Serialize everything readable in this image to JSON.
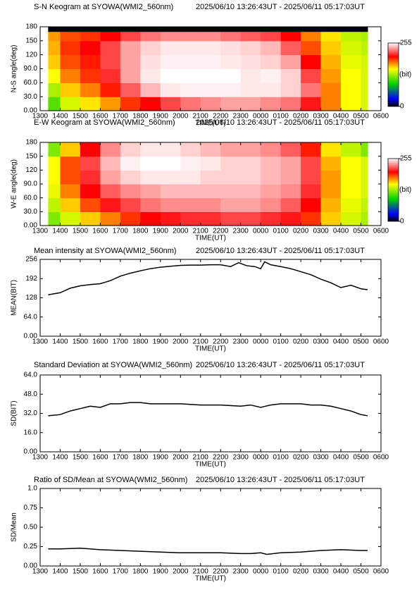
{
  "chart_data": [
    {
      "type": "heatmap",
      "title": "S-N Keogram at SYOWA(WMI2_560nm)",
      "time_range": "2025/06/10 13:26:43UT - 2025/06/11 05:17:03UT",
      "xlabel": "TIME(UT)",
      "ylabel": "N-S angle(deg)",
      "xlim": [
        13,
        30
      ],
      "xticks": [
        {
          "value": 13,
          "label": "1300"
        },
        {
          "value": 14,
          "label": "1400"
        },
        {
          "value": 15,
          "label": "1500"
        },
        {
          "value": 16,
          "label": "1600"
        },
        {
          "value": 17,
          "label": "1700"
        },
        {
          "value": 18,
          "label": "1800"
        },
        {
          "value": 19,
          "label": "1900"
        },
        {
          "value": 20,
          "label": "2000"
        },
        {
          "value": 21,
          "label": "2100"
        },
        {
          "value": 22,
          "label": "2200"
        },
        {
          "value": 23,
          "label": "2300"
        },
        {
          "value": 24,
          "label": "0000"
        },
        {
          "value": 25,
          "label": "0100"
        },
        {
          "value": 26,
          "label": "0200"
        },
        {
          "value": 27,
          "label": "0300"
        },
        {
          "value": 28,
          "label": "0400"
        },
        {
          "value": 29,
          "label": "0500"
        },
        {
          "value": 30,
          "label": "0600"
        }
      ],
      "ylim": [
        0,
        180
      ],
      "yticks": [
        {
          "value": 0,
          "label": "0.00"
        },
        {
          "value": 30,
          "label": "30.0"
        },
        {
          "value": 60,
          "label": "60.0"
        },
        {
          "value": 90,
          "label": "90.0"
        },
        120,
        150,
        180
      ],
      "zlim": [
        0,
        255
      ],
      "zticks": [
        0,
        255
      ],
      "zlabel": "(bit)",
      "x_edges": [
        13.4,
        14,
        15,
        16,
        17,
        18,
        19,
        20,
        21,
        22,
        23,
        24,
        25,
        26,
        27,
        28,
        29,
        29.33
      ],
      "y_edges": [
        0,
        30,
        60,
        90,
        120,
        150,
        170,
        180
      ],
      "z": [
        [
          110,
          140,
          155,
          170,
          190,
          200,
          215,
          225,
          230,
          235,
          235,
          230,
          225,
          205,
          175,
          150,
          140
        ],
        [
          130,
          160,
          175,
          195,
          220,
          240,
          250,
          252,
          252,
          252,
          250,
          250,
          245,
          225,
          175,
          150,
          140
        ],
        [
          150,
          175,
          190,
          210,
          235,
          250,
          255,
          255,
          255,
          255,
          250,
          252,
          245,
          215,
          170,
          150,
          140
        ],
        [
          160,
          185,
          195,
          215,
          235,
          248,
          252,
          252,
          252,
          250,
          248,
          245,
          235,
          200,
          165,
          145,
          140
        ],
        [
          165,
          190,
          200,
          215,
          235,
          245,
          250,
          250,
          250,
          248,
          245,
          240,
          220,
          185,
          160,
          140,
          135
        ],
        [
          170,
          185,
          190,
          200,
          215,
          225,
          230,
          230,
          230,
          225,
          220,
          215,
          200,
          175,
          155,
          135,
          130
        ],
        [
          null,
          null,
          null,
          null,
          null,
          null,
          null,
          null,
          null,
          null,
          null,
          null,
          null,
          null,
          null,
          null,
          null
        ]
      ]
    },
    {
      "type": "heatmap",
      "title": "E-W Keogram at SYOWA(WMI2_560nm)",
      "time_range": "2025/06/10 13:26:43UT - 2025/06/11 05:17:03UT",
      "xlabel": "TIME(UT)",
      "ylabel": "W-E angle(deg)",
      "xlim": [
        13,
        30
      ],
      "xticks": [
        {
          "value": 13,
          "label": "1300"
        },
        {
          "value": 14,
          "label": "1400"
        },
        {
          "value": 15,
          "label": "1500"
        },
        {
          "value": 16,
          "label": "1600"
        },
        {
          "value": 17,
          "label": "1700"
        },
        {
          "value": 18,
          "label": "1800"
        },
        {
          "value": 19,
          "label": "1900"
        },
        {
          "value": 20,
          "label": "2000"
        },
        {
          "value": 21,
          "label": "2100"
        },
        {
          "value": 22,
          "label": "2200"
        },
        {
          "value": 23,
          "label": "2300"
        },
        {
          "value": 24,
          "label": "0000"
        },
        {
          "value": 25,
          "label": "0100"
        },
        {
          "value": 26,
          "label": "0200"
        },
        {
          "value": 27,
          "label": "0300"
        },
        {
          "value": 28,
          "label": "0400"
        },
        {
          "value": 29,
          "label": "0500"
        },
        {
          "value": 30,
          "label": "0600"
        }
      ],
      "ylim": [
        0,
        180
      ],
      "yticks": [
        {
          "value": 0,
          "label": "0.00"
        },
        {
          "value": 30,
          "label": "30.0"
        },
        {
          "value": 60,
          "label": "60.0"
        },
        {
          "value": 90,
          "label": "90.0"
        },
        120,
        150,
        180
      ],
      "zlim": [
        0,
        255
      ],
      "zticks": [
        0,
        255
      ],
      "zlabel": "(bit)",
      "x_edges": [
        13.4,
        14,
        15,
        16,
        17,
        18,
        19,
        20,
        21,
        22,
        23,
        24,
        25,
        26,
        27,
        28,
        29,
        29.33
      ],
      "y_edges": [
        0,
        30,
        60,
        90,
        120,
        150,
        180
      ],
      "z": [
        [
          120,
          140,
          160,
          175,
          190,
          200,
          205,
          210,
          210,
          215,
          215,
          210,
          205,
          190,
          160,
          140,
          130
        ],
        [
          135,
          160,
          185,
          205,
          215,
          225,
          230,
          230,
          230,
          235,
          235,
          230,
          220,
          200,
          165,
          145,
          135
        ],
        [
          145,
          175,
          200,
          220,
          230,
          235,
          240,
          240,
          240,
          240,
          240,
          235,
          230,
          210,
          170,
          150,
          140
        ],
        [
          150,
          185,
          210,
          235,
          245,
          250,
          250,
          250,
          245,
          245,
          245,
          240,
          235,
          215,
          170,
          150,
          140
        ],
        [
          150,
          185,
          215,
          240,
          252,
          255,
          255,
          252,
          250,
          245,
          245,
          240,
          235,
          215,
          165,
          150,
          140
        ],
        [
          120,
          160,
          200,
          230,
          245,
          250,
          250,
          245,
          240,
          235,
          235,
          230,
          220,
          195,
          155,
          135,
          120
        ]
      ]
    },
    {
      "type": "line",
      "title": "Mean intensity at SYOWA(WMI2_560nm)",
      "time_range": "2025/06/10 13:26:43UT - 2025/06/11 05:17:03UT",
      "xlabel": "TIME(UT)",
      "ylabel": "MEAN(BIT)",
      "color": "#000000",
      "xlim": [
        13,
        30
      ],
      "xticks": [
        {
          "value": 13,
          "label": "1300"
        },
        {
          "value": 14,
          "label": "1400"
        },
        {
          "value": 15,
          "label": "1500"
        },
        {
          "value": 16,
          "label": "1600"
        },
        {
          "value": 17,
          "label": "1700"
        },
        {
          "value": 18,
          "label": "1800"
        },
        {
          "value": 19,
          "label": "1900"
        },
        {
          "value": 20,
          "label": "2000"
        },
        {
          "value": 21,
          "label": "2100"
        },
        {
          "value": 22,
          "label": "2200"
        },
        {
          "value": 23,
          "label": "2300"
        },
        {
          "value": 24,
          "label": "0000"
        },
        {
          "value": 25,
          "label": "0100"
        },
        {
          "value": 26,
          "label": "0200"
        },
        {
          "value": 27,
          "label": "0300"
        },
        {
          "value": 28,
          "label": "0400"
        },
        {
          "value": 29,
          "label": "0500"
        },
        {
          "value": 30,
          "label": "0600"
        }
      ],
      "ylim": [
        0,
        256
      ],
      "yticks": [
        {
          "value": 0,
          "label": "0.00"
        },
        {
          "value": 64,
          "label": "64.0"
        },
        128,
        192,
        256
      ],
      "x": [
        13.4,
        14,
        14.5,
        15,
        15.5,
        16,
        16.5,
        17,
        17.5,
        18,
        18.5,
        19,
        19.5,
        20,
        20.5,
        21,
        21.5,
        22,
        22.5,
        22.9,
        23.3,
        23.7,
        24,
        24.2,
        24.5,
        25,
        25.5,
        26,
        26.5,
        27,
        27.5,
        28,
        28.5,
        29,
        29.33
      ],
      "values": [
        138,
        145,
        160,
        168,
        172,
        175,
        185,
        200,
        210,
        218,
        225,
        230,
        233,
        236,
        237,
        237,
        238,
        238,
        232,
        245,
        235,
        232,
        225,
        248,
        238,
        232,
        225,
        215,
        205,
        190,
        178,
        162,
        170,
        158,
        155
      ]
    },
    {
      "type": "line",
      "title": "Standard Deviation at SYOWA(WMI2_560nm)",
      "time_range": "2025/06/10 13:26:43UT - 2025/06/11 05:17:03UT",
      "xlabel": "TIME(UT)",
      "ylabel": "SD(BIT)",
      "color": "#000000",
      "xlim": [
        13,
        30
      ],
      "xticks": [
        {
          "value": 13,
          "label": "1300"
        },
        {
          "value": 14,
          "label": "1400"
        },
        {
          "value": 15,
          "label": "1500"
        },
        {
          "value": 16,
          "label": "1600"
        },
        {
          "value": 17,
          "label": "1700"
        },
        {
          "value": 18,
          "label": "1800"
        },
        {
          "value": 19,
          "label": "1900"
        },
        {
          "value": 20,
          "label": "2000"
        },
        {
          "value": 21,
          "label": "2100"
        },
        {
          "value": 22,
          "label": "2200"
        },
        {
          "value": 23,
          "label": "2300"
        },
        {
          "value": 24,
          "label": "0000"
        },
        {
          "value": 25,
          "label": "0100"
        },
        {
          "value": 26,
          "label": "0200"
        },
        {
          "value": 27,
          "label": "0300"
        },
        {
          "value": 28,
          "label": "0400"
        },
        {
          "value": 29,
          "label": "0500"
        },
        {
          "value": 30,
          "label": "0600"
        }
      ],
      "ylim": [
        0,
        64
      ],
      "yticks": [
        {
          "value": 0,
          "label": "0.00"
        },
        {
          "value": 16,
          "label": "16.0"
        },
        {
          "value": 32,
          "label": "32.0"
        },
        {
          "value": 48,
          "label": "48.0"
        },
        {
          "value": 64,
          "label": "64.0"
        }
      ],
      "x": [
        13.4,
        14,
        14.5,
        15,
        15.5,
        16,
        16.5,
        17,
        17.5,
        18,
        18.5,
        19,
        19.5,
        20,
        21,
        22,
        23,
        23.5,
        24,
        24.5,
        25,
        26,
        26.5,
        27,
        27.5,
        28,
        28.5,
        29,
        29.33
      ],
      "values": [
        30,
        31,
        34,
        36,
        38,
        37,
        40,
        40,
        41,
        41,
        40,
        40,
        40,
        40,
        39,
        39,
        38,
        39,
        37,
        39,
        40,
        40,
        39,
        39,
        38,
        36,
        34,
        31,
        30
      ]
    },
    {
      "type": "line",
      "title": "Ratio of SD/Mean at SYOWA(WMI2_560nm)",
      "time_range": "2025/06/10 13:26:43UT - 2025/06/11 05:17:03UT",
      "xlabel": "TIME(UT)",
      "ylabel": "SD/Mean",
      "color": "#000000",
      "xlim": [
        13,
        30
      ],
      "xticks": [
        {
          "value": 13,
          "label": "1300"
        },
        {
          "value": 14,
          "label": "1400"
        },
        {
          "value": 15,
          "label": "1500"
        },
        {
          "value": 16,
          "label": "1600"
        },
        {
          "value": 17,
          "label": "1700"
        },
        {
          "value": 18,
          "label": "1800"
        },
        {
          "value": 19,
          "label": "1900"
        },
        {
          "value": 20,
          "label": "2000"
        },
        {
          "value": 21,
          "label": "2100"
        },
        {
          "value": 22,
          "label": "2200"
        },
        {
          "value": 23,
          "label": "2300"
        },
        {
          "value": 24,
          "label": "0000"
        },
        {
          "value": 25,
          "label": "0100"
        },
        {
          "value": 26,
          "label": "0200"
        },
        {
          "value": 27,
          "label": "0300"
        },
        {
          "value": 28,
          "label": "0400"
        },
        {
          "value": 29,
          "label": "0500"
        },
        {
          "value": 30,
          "label": "0600"
        }
      ],
      "ylim": [
        0,
        1
      ],
      "yticks": [
        {
          "value": 0,
          "label": "0.00"
        },
        0.25,
        {
          "value": 0.5,
          "label": "0.50"
        },
        0.75,
        {
          "value": 1,
          "label": "1.0"
        }
      ],
      "x": [
        13.4,
        14,
        15,
        16,
        17,
        18,
        19,
        20,
        21,
        22,
        23,
        23.5,
        24,
        24.3,
        25,
        26,
        27,
        28,
        29,
        29.33
      ],
      "values": [
        0.22,
        0.22,
        0.23,
        0.21,
        0.2,
        0.19,
        0.18,
        0.17,
        0.17,
        0.17,
        0.16,
        0.16,
        0.17,
        0.15,
        0.17,
        0.18,
        0.2,
        0.21,
        0.2,
        0.2
      ]
    }
  ]
}
